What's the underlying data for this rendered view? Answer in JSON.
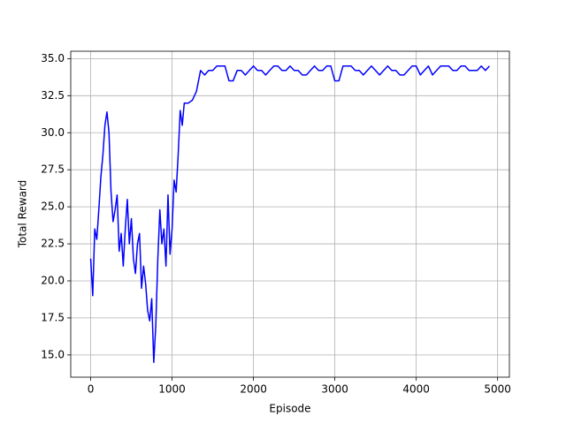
{
  "chart_data": {
    "type": "line",
    "xlabel": "Episode",
    "ylabel": "Total Reward",
    "x": [
      0,
      25,
      50,
      75,
      100,
      125,
      150,
      175,
      200,
      225,
      250,
      275,
      300,
      325,
      350,
      375,
      400,
      425,
      450,
      475,
      500,
      525,
      550,
      575,
      600,
      625,
      650,
      675,
      700,
      725,
      750,
      775,
      800,
      825,
      850,
      875,
      900,
      925,
      950,
      975,
      1000,
      1025,
      1050,
      1075,
      1100,
      1125,
      1150,
      1200,
      1250,
      1300,
      1350,
      1400,
      1450,
      1500,
      1550,
      1600,
      1650,
      1700,
      1750,
      1800,
      1850,
      1900,
      1950,
      2000,
      2050,
      2100,
      2150,
      2200,
      2250,
      2300,
      2350,
      2400,
      2450,
      2500,
      2550,
      2600,
      2650,
      2700,
      2750,
      2800,
      2850,
      2900,
      2950,
      3000,
      3050,
      3100,
      3150,
      3200,
      3250,
      3300,
      3350,
      3400,
      3450,
      3500,
      3550,
      3600,
      3650,
      3700,
      3750,
      3800,
      3850,
      3900,
      3950,
      4000,
      4050,
      4100,
      4150,
      4200,
      4250,
      4300,
      4350,
      4400,
      4450,
      4500,
      4550,
      4600,
      4650,
      4700,
      4750,
      4800,
      4850,
      4900
    ],
    "values": [
      21.5,
      19.0,
      23.5,
      22.8,
      24.8,
      27.0,
      28.5,
      30.5,
      31.4,
      30.0,
      26.0,
      24.0,
      24.8,
      25.8,
      22.0,
      23.2,
      21.0,
      23.5,
      25.5,
      22.5,
      24.2,
      21.5,
      20.5,
      22.5,
      23.2,
      19.5,
      21.0,
      19.8,
      18.0,
      17.3,
      18.8,
      14.5,
      17.0,
      21.5,
      24.8,
      22.5,
      23.5,
      21.0,
      25.8,
      21.8,
      23.5,
      26.8,
      26.0,
      28.5,
      31.5,
      30.5,
      32.0,
      32.0,
      32.2,
      32.8,
      34.2,
      33.9,
      34.2,
      34.2,
      34.5,
      34.5,
      34.5,
      33.5,
      33.5,
      34.2,
      34.2,
      33.9,
      34.2,
      34.5,
      34.2,
      34.2,
      33.9,
      34.2,
      34.5,
      34.5,
      34.2,
      34.2,
      34.5,
      34.2,
      34.2,
      33.9,
      33.9,
      34.2,
      34.5,
      34.2,
      34.2,
      34.5,
      34.5,
      33.5,
      33.5,
      34.5,
      34.5,
      34.5,
      34.2,
      34.2,
      33.9,
      34.2,
      34.5,
      34.2,
      33.9,
      34.2,
      34.5,
      34.2,
      34.2,
      33.9,
      33.9,
      34.2,
      34.5,
      34.5,
      33.9,
      34.2,
      34.5,
      33.9,
      34.2,
      34.5,
      34.5,
      34.5,
      34.2,
      34.2,
      34.5,
      34.5,
      34.2,
      34.2,
      34.2,
      34.5,
      34.2,
      34.5
    ],
    "color": "#0000ff",
    "xlim": [
      -245,
      5145
    ],
    "xticks": [
      0,
      1000,
      2000,
      3000,
      4000,
      5000
    ],
    "ylim": [
      13.5,
      35.5
    ],
    "yticks": [
      {
        "value": 15,
        "label": "15.0"
      },
      17.5,
      {
        "value": 20,
        "label": "20.0"
      },
      22.5,
      {
        "value": 25,
        "label": "25.0"
      },
      27.5,
      {
        "value": 30,
        "label": "30.0"
      },
      32.5,
      {
        "value": 35,
        "label": "35.0"
      }
    ],
    "grid": true
  }
}
